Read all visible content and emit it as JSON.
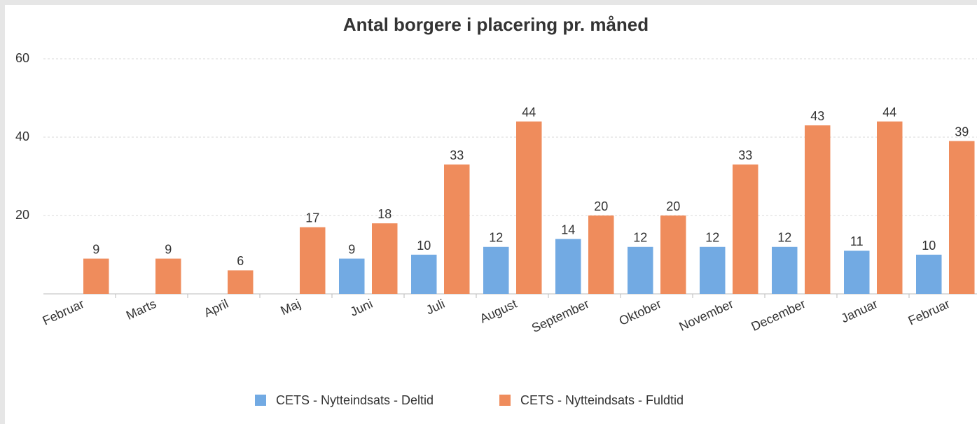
{
  "chart_data": {
    "type": "bar",
    "title": "Antal borgere i placering pr. måned",
    "categories": [
      "Februar",
      "Marts",
      "April",
      "Maj",
      "Juni",
      "Juli",
      "August",
      "September",
      "Oktober",
      "November",
      "December",
      "Januar",
      "Februar"
    ],
    "series": [
      {
        "name": "CETS - Nytteindsats - Deltid",
        "color": "#72aae3",
        "values": [
          null,
          null,
          null,
          null,
          9,
          10,
          12,
          14,
          12,
          12,
          12,
          11,
          10
        ]
      },
      {
        "name": "CETS - Nytteindsats - Fuldtid",
        "color": "#ef8c5c",
        "values": [
          9,
          9,
          6,
          17,
          18,
          33,
          44,
          20,
          20,
          33,
          43,
          44,
          39
        ]
      }
    ],
    "ylim": [
      0,
      60
    ],
    "yticks": [
      20,
      40,
      60
    ],
    "grid": true,
    "legend": "bottom"
  }
}
